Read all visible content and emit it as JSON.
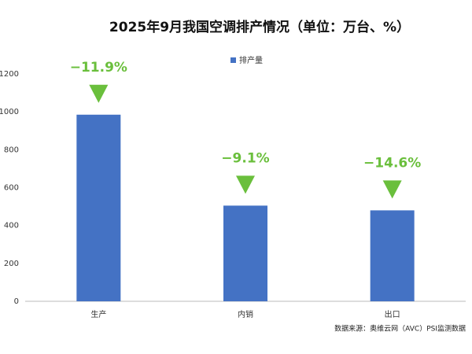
{
  "chart_data": {
    "type": "bar",
    "title": "2025年9月我国空调排产情况（单位：万台、%）",
    "categories": [
      "生产",
      "内销",
      "出口"
    ],
    "series": [
      {
        "name": "排产量",
        "color": "#4472c4",
        "values": [
          985,
          505,
          480
        ]
      }
    ],
    "annotations": [
      "−11.9%",
      "−9.1%",
      "−14.6%"
    ],
    "annotation_color": "#6abf3c",
    "ylim": [
      0,
      1200
    ],
    "yticks": [
      0,
      200,
      400,
      600,
      800,
      1000,
      1200
    ],
    "grid": false,
    "source": "数据来源：奥维云网（AVC）PSI监测数据"
  }
}
